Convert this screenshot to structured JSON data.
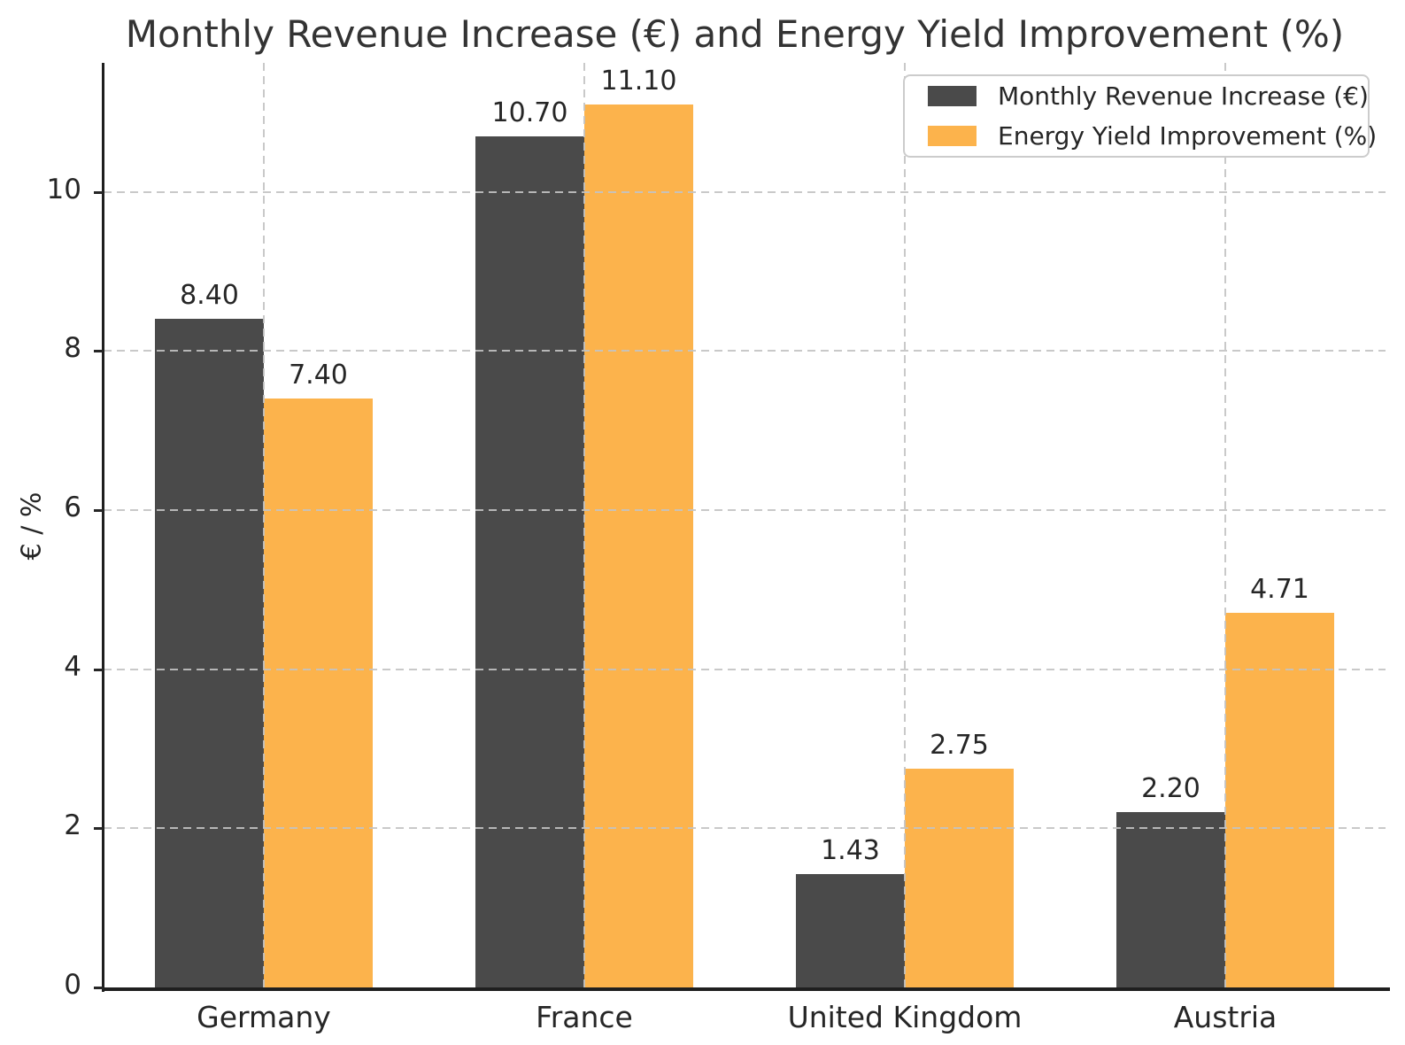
{
  "chart_data": {
    "type": "bar",
    "title": "Monthly Revenue Increase (€) and Energy Yield Improvement (%)",
    "xlabel": "",
    "ylabel": "€ / %",
    "categories": [
      "Germany",
      "France",
      "United Kingdom",
      "Austria"
    ],
    "series": [
      {
        "name": "Monthly Revenue Increase (€)",
        "color": "#4a4a4a",
        "values": [
          8.4,
          10.7,
          1.43,
          2.2
        ]
      },
      {
        "name": "Energy Yield Improvement (%)",
        "color": "#fcb34c",
        "values": [
          7.4,
          11.1,
          2.75,
          4.71
        ]
      }
    ],
    "value_label_decimals": 2,
    "yticks": [
      0,
      2,
      4,
      6,
      8,
      10
    ],
    "ylim": [
      0,
      11.62
    ],
    "grid": true,
    "grid_style": "dashed",
    "legend_position": "upper right"
  }
}
